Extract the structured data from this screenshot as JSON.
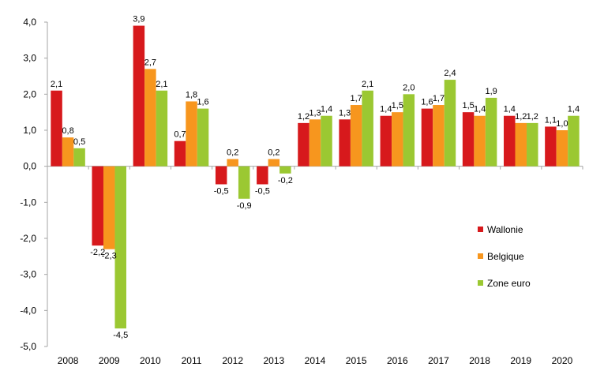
{
  "chart_data": {
    "type": "bar",
    "title": "",
    "xlabel": "",
    "ylabel": "",
    "ylim": [
      -5,
      4
    ],
    "y_ticks": [
      "4,0",
      "3,0",
      "2,0",
      "1,0",
      "0,0",
      "-1,0",
      "-2,0",
      "-3,0",
      "-4,0",
      "-5,0"
    ],
    "y_tick_values": [
      4,
      3,
      2,
      1,
      0,
      -1,
      -2,
      -3,
      -4,
      -5
    ],
    "categories": [
      "2008",
      "2009",
      "2010",
      "2011",
      "2012",
      "2013",
      "2014",
      "2015",
      "2016",
      "2017",
      "2018",
      "2019",
      "2020"
    ],
    "series": [
      {
        "name": "Wallonie",
        "color": "#d7191c",
        "values": [
          2.1,
          -2.2,
          3.9,
          0.7,
          -0.5,
          -0.5,
          1.2,
          1.3,
          1.4,
          1.6,
          1.5,
          1.4,
          1.1
        ],
        "labels": [
          "2,1",
          "-2,2",
          "3,9",
          "0,7",
          "-0,5",
          "-0,5",
          "1,2",
          "1,3",
          "1,4",
          "1,6",
          "1,5",
          "1,4",
          "1,1"
        ]
      },
      {
        "name": "Belgique",
        "color": "#f7961e",
        "values": [
          0.8,
          -2.3,
          2.7,
          1.8,
          0.2,
          0.2,
          1.3,
          1.7,
          1.5,
          1.7,
          1.4,
          1.2,
          1.0
        ],
        "labels": [
          "0,8",
          "-2,3",
          "2,7",
          "1,8",
          "0,2",
          "0,2",
          "1,3",
          "1,7",
          "1,5",
          "1,7",
          "1,4",
          "1,2",
          "1,0"
        ]
      },
      {
        "name": "Zone euro",
        "color": "#9bc832",
        "values": [
          0.5,
          -4.5,
          2.1,
          1.6,
          -0.9,
          -0.2,
          1.4,
          2.1,
          2.0,
          2.4,
          1.9,
          1.2,
          1.4
        ],
        "labels": [
          "0,5",
          "-4,5",
          "2,1",
          "1,6",
          "-0,9",
          "-0,2",
          "1,4",
          "2,1",
          "2,0",
          "2,4",
          "1,9",
          "1,2",
          "1,4"
        ]
      }
    ],
    "grid": false,
    "legend_position": "right"
  }
}
